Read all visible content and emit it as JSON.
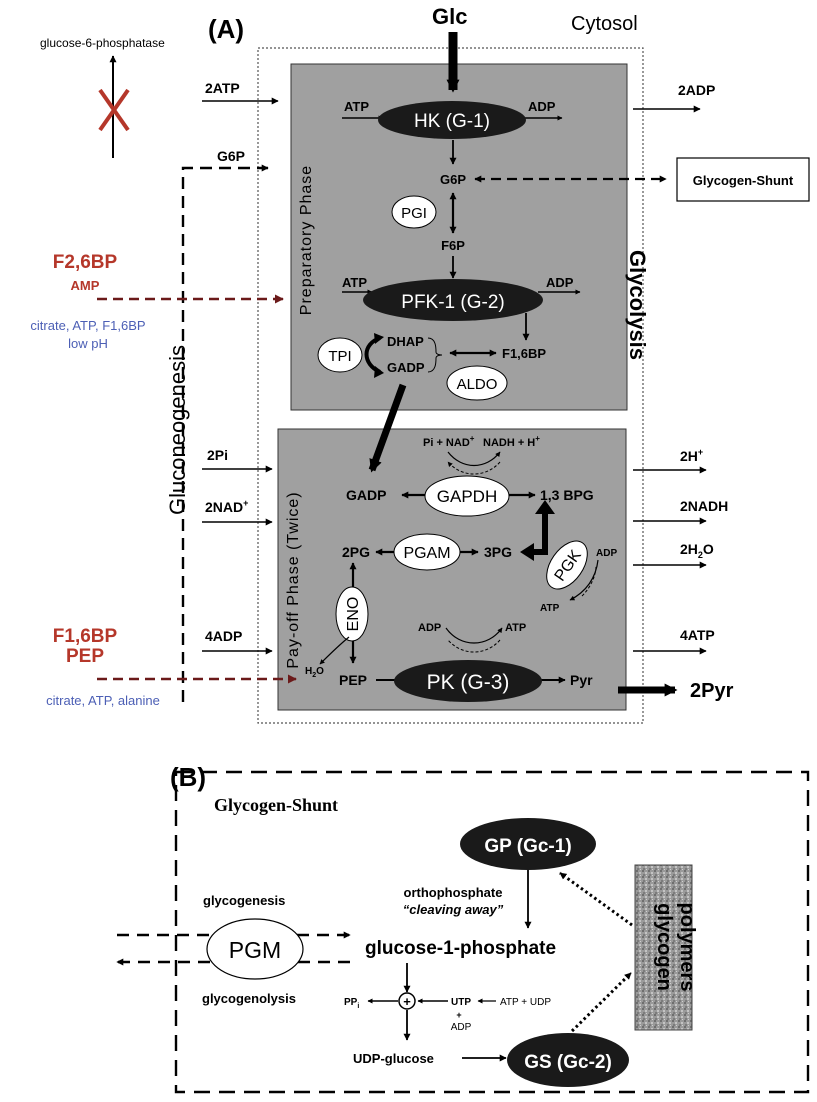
{
  "colors": {
    "box_gray": "#a0a0a0",
    "enzyme_dark": "#1a1a1a",
    "activator_red": "#b5372a",
    "inhibitor_blue": "#4c5fb5",
    "regulation_arrow": "#6b1a1a",
    "cross_red": "#b5372a"
  },
  "panel_a": {
    "label": "(A)",
    "cytosol": "Cytosol",
    "glc": "Glc",
    "g6pase": "glucose-6-phosphatase",
    "glycolysis": "Glycolysis",
    "gluconeogenesis": "Gluconeogenesis",
    "prep_phase": "Preparatory Phase",
    "payoff_phase": "Pay-off Phase (Twice)",
    "left_2atp": "2ATP",
    "left_g6p": "G6P",
    "left_2pi": "2Pi",
    "left_2nad_main": "2NAD",
    "left_2nad_sup": "+",
    "left_4adp": "4ADP",
    "right_2adp": "2ADP",
    "right_2h_main": "2H",
    "right_2h_sup": "+",
    "right_2nadh": "2NADH",
    "right_2h2o_a": "2H",
    "right_2h2o_sub": "2",
    "right_2h2o_b": "O",
    "right_4atp": "4ATP",
    "right_2pyr": "2Pyr",
    "glycogen_shunt_box": "Glycogen-Shunt",
    "reg1_act1": "F2,6BP",
    "reg1_act2": "AMP",
    "reg1_inh1": "citrate, ATP, F1,6BP",
    "reg1_inh2": "low pH",
    "reg2_act1": "F1,6BP",
    "reg2_act2": "PEP",
    "reg2_inh1": "citrate, ATP, alanine",
    "hk": "HK (G-1)",
    "hk_atp": "ATP",
    "hk_adp": "ADP",
    "g6p": "G6P",
    "pgi": "PGI",
    "f6p": "F6P",
    "pfk": "PFK-1 (G-2)",
    "pfk_atp": "ATP",
    "pfk_adp": "ADP",
    "tpi": "TPI",
    "dhap": "DHAP",
    "gadp_top": "GADP",
    "f16bp": "F1,6BP",
    "aldo": "ALDO",
    "pi_nad_main": "Pi + NAD",
    "pi_nad_sup": "+",
    "nadh_h_main": "NADH + H",
    "nadh_h_sup": "+",
    "gadp": "GADP",
    "gapdh": "GAPDH",
    "bpg13": "1,3 BPG",
    "pg2": "2PG",
    "pgam": "PGAM",
    "pg3": "3PG",
    "pgk": "PGK",
    "pgk_adp": "ADP",
    "pgk_atp": "ATP",
    "eno": "ENO",
    "h2o_a": "H",
    "h2o_sub": "2",
    "h2o_b": "O",
    "pk_adp": "ADP",
    "pk_atp": "ATP",
    "pep": "PEP",
    "pk": "PK (G-3)",
    "pyr": "Pyr"
  },
  "panel_b": {
    "label": "(B)",
    "title": "Glycogen-Shunt",
    "gp": "GP (Gc-1)",
    "gs": "GS (Gc-2)",
    "orthophosphate": "orthophosphate",
    "cleaving": "“cleaving away”",
    "glycogenesis": "glycogenesis",
    "glycogenolysis": "glycogenolysis",
    "pgm": "PGM",
    "g1p": "glucose-1-phosphate",
    "ppi_main": "PP",
    "ppi_sub": "i",
    "plus": "+",
    "utp": "UTP",
    "utp_plus": "+",
    "utp_adp": "ADP",
    "atp_udp": "ATP + UDP",
    "udp_glucose": "UDP-glucose",
    "glycogen_line1": "glycogen",
    "glycogen_line2": "polymers"
  }
}
